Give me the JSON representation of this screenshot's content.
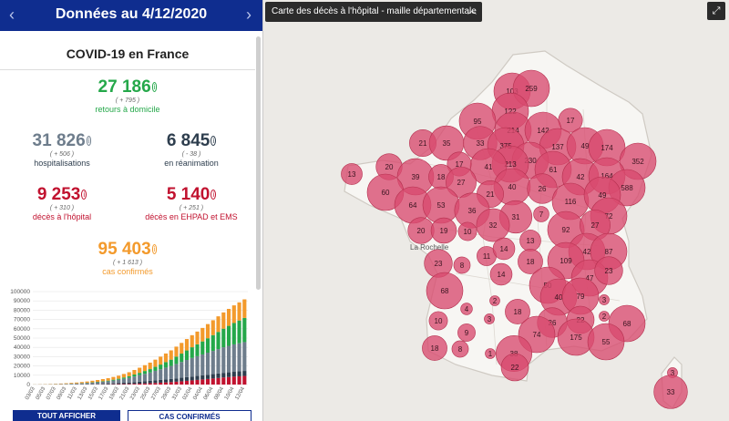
{
  "sidebar": {
    "header_title": "Données au 4/12/2020",
    "prev_icon": "chevron-left-icon",
    "next_icon": "chevron-right-icon",
    "subtitle": "COVID-19 en France",
    "stats": {
      "retours": {
        "value": "27 186",
        "delta": "( + 795 )",
        "label": "retours à domicile",
        "color": "#25a84a"
      },
      "hospit": {
        "value": "31 826",
        "delta": "( + 506 )",
        "label": "hospitalisations",
        "color": "#6e7d8c"
      },
      "rea": {
        "value": "6 845",
        "delta": "( - 38 )",
        "label": "en réanimation",
        "color": "#2e3e4e"
      },
      "deces_hopital": {
        "value": "9 253",
        "delta": "( + 310 )",
        "label": "décès à l'hôpital",
        "color": "#c1122f"
      },
      "deces_ehpad": {
        "value": "5 140",
        "delta": "( + 251 )",
        "label": "décès en EHPAD et EMS",
        "color": "#c1122f"
      },
      "cas": {
        "value": "95 403",
        "delta": "( + 1 613 )",
        "label": "cas confirmés",
        "color": "#f39a2c"
      }
    },
    "buttons": {
      "all": "TOUT AFFICHER",
      "cases": "CAS CONFIRMÉS"
    }
  },
  "chart_data": {
    "type": "bar",
    "stacked": true,
    "categories": [
      "03/03",
      "05/03",
      "07/03",
      "09/03",
      "11/03",
      "13/03",
      "15/03",
      "17/03",
      "19/03",
      "21/03",
      "23/03",
      "25/03",
      "27/03",
      "29/03",
      "31/03",
      "02/04",
      "04/04",
      "06/04",
      "08/04",
      "10/04",
      "12/04"
    ],
    "ylim": [
      0,
      100000
    ],
    "yticks": [
      "0",
      "10000",
      "20000",
      "30000",
      "40000",
      "50000",
      "60000",
      "70000",
      "80000",
      "90000",
      "100000"
    ],
    "series": [
      {
        "color": "#c1122f",
        "values": [
          5,
          10,
          30,
          60,
          90,
          130,
          200,
          280,
          450,
          650,
          1000,
          1400,
          2000,
          2600,
          3500,
          4500,
          5500,
          6500,
          7600,
          8500,
          9250
        ]
      },
      {
        "color": "#2e3e4e",
        "values": [
          10,
          30,
          60,
          110,
          180,
          280,
          450,
          750,
          1100,
          1600,
          2100,
          2600,
          3000,
          3400,
          3800,
          4100,
          4400,
          4700,
          5000,
          5200,
          5400
        ]
      },
      {
        "color": "#6e7d8c",
        "values": [
          60,
          150,
          280,
          500,
          800,
          1200,
          1800,
          2500,
          3600,
          5000,
          7000,
          9000,
          11500,
          14000,
          17000,
          20000,
          22500,
          25000,
          27500,
          29500,
          31000
        ]
      },
      {
        "color": "#25a84a",
        "values": [
          10,
          30,
          60,
          110,
          180,
          280,
          450,
          700,
          1100,
          1700,
          2500,
          3600,
          5000,
          6800,
          9000,
          11500,
          14000,
          17000,
          20000,
          23000,
          26000
        ]
      },
      {
        "color": "#f39a2c",
        "values": [
          80,
          200,
          350,
          600,
          950,
          1400,
          2000,
          2600,
          3300,
          4300,
          5500,
          7000,
          8500,
          10000,
          11500,
          13000,
          14500,
          16000,
          17500,
          19000,
          20000
        ]
      }
    ]
  },
  "map": {
    "title": "Carte des décès à l'hôpital - maille départementale",
    "title_icon": "chevron-up-icon",
    "fullscreen_icon": "fullscreen-icon",
    "city_label": "La Rochelle",
    "bubble_color": "#d94a6e",
    "bubbles": [
      {
        "v": "103",
        "c": [
          562,
          100
        ]
      },
      {
        "v": "259",
        "c": [
          583,
          97
        ]
      },
      {
        "v": "122",
        "c": [
          560,
          122
        ]
      },
      {
        "v": "17",
        "c": [
          626,
          132
        ]
      },
      {
        "v": "95",
        "c": [
          524,
          133
        ]
      },
      {
        "v": "214",
        "c": [
          563,
          143
        ]
      },
      {
        "v": "142",
        "c": [
          596,
          143
        ]
      },
      {
        "v": "21",
        "c": [
          464,
          157
        ]
      },
      {
        "v": "35",
        "c": [
          490,
          157
        ]
      },
      {
        "v": "33",
        "c": [
          527,
          157
        ]
      },
      {
        "v": "375",
        "c": [
          555,
          160
        ]
      },
      {
        "v": "137",
        "c": [
          612,
          161
        ]
      },
      {
        "v": "49",
        "c": [
          642,
          160
        ]
      },
      {
        "v": "174",
        "c": [
          666,
          162
        ]
      },
      {
        "v": "230",
        "c": [
          582,
          176
        ]
      },
      {
        "v": "213",
        "c": [
          560,
          180
        ]
      },
      {
        "v": "41",
        "c": [
          536,
          183
        ]
      },
      {
        "v": "13",
        "c": [
          386,
          191
        ]
      },
      {
        "v": "20",
        "c": [
          427,
          183
        ]
      },
      {
        "v": "17",
        "c": [
          504,
          180
        ]
      },
      {
        "v": "61",
        "c": [
          607,
          186
        ]
      },
      {
        "v": "352",
        "c": [
          700,
          177
        ]
      },
      {
        "v": "39",
        "c": [
          456,
          194
        ]
      },
      {
        "v": "18",
        "c": [
          484,
          194
        ]
      },
      {
        "v": "27",
        "c": [
          506,
          200
        ]
      },
      {
        "v": "40",
        "c": [
          562,
          205
        ]
      },
      {
        "v": "26",
        "c": [
          595,
          207
        ]
      },
      {
        "v": "42",
        "c": [
          637,
          194
        ]
      },
      {
        "v": "164",
        "c": [
          666,
          193
        ]
      },
      {
        "v": "588",
        "c": [
          688,
          206
        ]
      },
      {
        "v": "60",
        "c": [
          423,
          211
        ]
      },
      {
        "v": "21",
        "c": [
          538,
          213
        ]
      },
      {
        "v": "116",
        "c": [
          626,
          221
        ]
      },
      {
        "v": "49",
        "c": [
          661,
          214
        ]
      },
      {
        "v": "64",
        "c": [
          453,
          225
        ]
      },
      {
        "v": "53",
        "c": [
          484,
          225
        ]
      },
      {
        "v": "36",
        "c": [
          518,
          231
        ]
      },
      {
        "v": "31",
        "c": [
          566,
          238
        ]
      },
      {
        "v": "7",
        "c": [
          594,
          235
        ]
      },
      {
        "v": "72",
        "c": [
          668,
          237
        ]
      },
      {
        "v": "20",
        "c": [
          462,
          253
        ]
      },
      {
        "v": "19",
        "c": [
          487,
          253
        ]
      },
      {
        "v": "10",
        "c": [
          513,
          254
        ]
      },
      {
        "v": "32",
        "c": [
          541,
          247
        ]
      },
      {
        "v": "92",
        "c": [
          621,
          252
        ]
      },
      {
        "v": "27",
        "c": [
          653,
          247
        ]
      },
      {
        "v": "13",
        "c": [
          582,
          264
        ]
      },
      {
        "v": "11",
        "c": [
          534,
          281
        ]
      },
      {
        "v": "42",
        "c": [
          644,
          276
        ]
      },
      {
        "v": "87",
        "c": [
          668,
          276
        ]
      },
      {
        "v": "23",
        "c": [
          481,
          289
        ]
      },
      {
        "v": "8",
        "c": [
          507,
          291
        ]
      },
      {
        "v": "14",
        "c": [
          553,
          273
        ]
      },
      {
        "v": "18",
        "c": [
          582,
          287
        ]
      },
      {
        "v": "109",
        "c": [
          621,
          286
        ]
      },
      {
        "v": "14",
        "c": [
          550,
          301
        ]
      },
      {
        "v": "47",
        "c": [
          647,
          305
        ]
      },
      {
        "v": "23",
        "c": [
          668,
          297
        ]
      },
      {
        "v": "68",
        "c": [
          488,
          319
        ]
      },
      {
        "v": "50",
        "c": [
          601,
          313
        ]
      },
      {
        "v": "40",
        "c": [
          613,
          326
        ]
      },
      {
        "v": "79",
        "c": [
          637,
          325
        ]
      },
      {
        "v": "2",
        "c": [
          543,
          330
        ]
      },
      {
        "v": "3",
        "c": [
          663,
          329
        ]
      },
      {
        "v": "10",
        "c": [
          481,
          352
        ]
      },
      {
        "v": "4",
        "c": [
          512,
          339
        ]
      },
      {
        "v": "3",
        "c": [
          537,
          350
        ]
      },
      {
        "v": "18",
        "c": [
          568,
          342
        ]
      },
      {
        "v": "26",
        "c": [
          606,
          354
        ]
      },
      {
        "v": "22",
        "c": [
          637,
          351
        ]
      },
      {
        "v": "2",
        "c": [
          663,
          347
        ]
      },
      {
        "v": "68",
        "c": [
          688,
          355
        ]
      },
      {
        "v": "9",
        "c": [
          512,
          365
        ]
      },
      {
        "v": "74",
        "c": [
          589,
          367
        ]
      },
      {
        "v": "175",
        "c": [
          632,
          370
        ]
      },
      {
        "v": "55",
        "c": [
          665,
          375
        ]
      },
      {
        "v": "18",
        "c": [
          477,
          382
        ]
      },
      {
        "v": "8",
        "c": [
          505,
          383
        ]
      },
      {
        "v": "1",
        "c": [
          538,
          388
        ]
      },
      {
        "v": "38",
        "c": [
          564,
          388
        ]
      },
      {
        "v": "22",
        "c": [
          565,
          403
        ]
      },
      {
        "v": "3",
        "c": [
          738,
          409
        ]
      },
      {
        "v": "33",
        "c": [
          736,
          430
        ]
      }
    ]
  }
}
